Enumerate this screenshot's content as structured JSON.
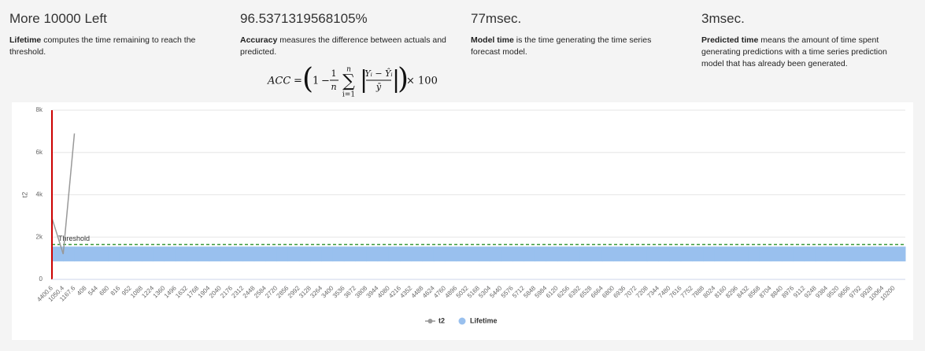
{
  "stats": [
    {
      "title": "More 10000 Left",
      "lead": "Lifetime",
      "text": "computes the time remaining to reach the threshold."
    },
    {
      "title": "96.5371319568105%",
      "lead": "Accuracy",
      "text": "measures the difference between actuals and predicted."
    },
    {
      "title": "77msec.",
      "lead": "Model time",
      "text": "is the time generating the time series forecast model."
    },
    {
      "title": "3msec.",
      "lead": "Predicted time",
      "text": "means the amount of time spent generating predictions with a time series prediction model that has already been generated."
    }
  ],
  "formula": {
    "lhs": "ACC",
    "eq": "=",
    "open": "(",
    "one": "1",
    "minus": "−",
    "frac_num": "1",
    "frac_den": "n",
    "sum": "∑",
    "sum_top": "n",
    "sum_bottom": "i=1",
    "bar_l": "|",
    "num": "Yᵢ − Ŷᵢ",
    "den": "ȳ",
    "bar_r": "|",
    "close": ")",
    "times": "× 100"
  },
  "chart_data": {
    "type": "line",
    "y_label": "t2",
    "grid": true,
    "plot_line_color": "#cc0000",
    "threshold": {
      "label": "Threshold",
      "value": 1650,
      "color": "#3a9a3a"
    },
    "ylim": [
      0,
      8000
    ],
    "yticks": [
      0,
      {
        "value": 2000,
        "label": "2k"
      },
      {
        "value": 4000,
        "label": "4k"
      },
      {
        "value": 6000,
        "label": "6k"
      },
      {
        "value": 8000,
        "label": "8k"
      }
    ],
    "categories": [
      "4400.6",
      "1050.4",
      "1167.6",
      "408",
      "544",
      "680",
      "816",
      "952",
      "1088",
      "1224",
      "1360",
      "1496",
      "1632",
      "1768",
      "1904",
      "2040",
      "2176",
      "2312",
      "2448",
      "2584",
      "2720",
      "2856",
      "2992",
      "3128",
      "3264",
      "3400",
      "3536",
      "3672",
      "3808",
      "3944",
      "4080",
      "4216",
      "4352",
      "4488",
      "4624",
      "4760",
      "4896",
      "5032",
      "5168",
      "5304",
      "5440",
      "5576",
      "5712",
      "5848",
      "5984",
      "6120",
      "6256",
      "6392",
      "6528",
      "6664",
      "6800",
      "6936",
      "7072",
      "7208",
      "7344",
      "7480",
      "7616",
      "7752",
      "7888",
      "8024",
      "8160",
      "8296",
      "8432",
      "8568",
      "8704",
      "8840",
      "8976",
      "9112",
      "9248",
      "9384",
      "9520",
      "9656",
      "9792",
      "9928",
      "10064",
      "10200"
    ],
    "series": [
      {
        "name": "t2",
        "color": "#999999",
        "values": [
          2900,
          1200,
          6900,
          null,
          null,
          null,
          null,
          null,
          null,
          null,
          null,
          null,
          null,
          null,
          null,
          null,
          null,
          null,
          null,
          null,
          null,
          null,
          null,
          null,
          null,
          null,
          null,
          null,
          null,
          null,
          null,
          null,
          null,
          null,
          null,
          null,
          null,
          null,
          null,
          null,
          null,
          null,
          null,
          null,
          null,
          null,
          null,
          null,
          null,
          null,
          null,
          null,
          null,
          null,
          null,
          null,
          null,
          null,
          null,
          null,
          null,
          null,
          null,
          null,
          null,
          null,
          null,
          null,
          null,
          null,
          null,
          null,
          null,
          null,
          null,
          null
        ]
      },
      {
        "name": "Lifetime",
        "color": "#99c0ee",
        "low": [
          850,
          850,
          850,
          850,
          850,
          850,
          850,
          850,
          850,
          850,
          850,
          850,
          850,
          850,
          850,
          850,
          850,
          850,
          850,
          850,
          850,
          850,
          850,
          850,
          850,
          850,
          850,
          850,
          850,
          850,
          850,
          850,
          850,
          850,
          850,
          850,
          850,
          850,
          850,
          850,
          850,
          850,
          850,
          850,
          850,
          850,
          850,
          850,
          850,
          850,
          850,
          850,
          850,
          850,
          850,
          850,
          850,
          850,
          850,
          850,
          850,
          850,
          850,
          850,
          850,
          850,
          850,
          850,
          850,
          850,
          850,
          850,
          850,
          850,
          850,
          850
        ],
        "high": [
          1550,
          1550,
          1550,
          1550,
          1550,
          1550,
          1550,
          1550,
          1550,
          1550,
          1550,
          1550,
          1550,
          1550,
          1550,
          1550,
          1550,
          1550,
          1550,
          1550,
          1550,
          1550,
          1550,
          1550,
          1550,
          1550,
          1550,
          1550,
          1550,
          1550,
          1550,
          1550,
          1550,
          1550,
          1550,
          1550,
          1550,
          1550,
          1550,
          1550,
          1550,
          1550,
          1550,
          1550,
          1550,
          1550,
          1550,
          1550,
          1550,
          1550,
          1550,
          1550,
          1550,
          1550,
          1550,
          1550,
          1550,
          1550,
          1550,
          1550,
          1550,
          1550,
          1550,
          1550,
          1550,
          1550,
          1550,
          1550,
          1550,
          1550,
          1550,
          1550,
          1550,
          1550,
          1550,
          1550
        ]
      }
    ]
  }
}
